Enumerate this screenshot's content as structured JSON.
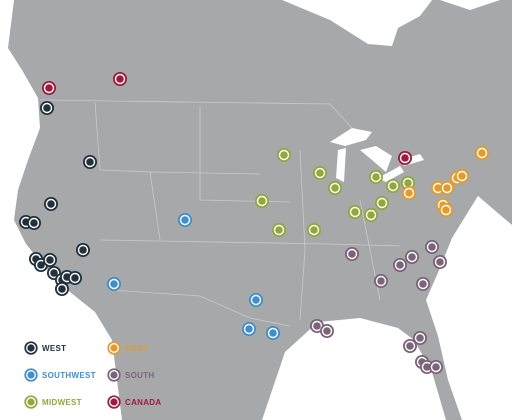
{
  "legend": {
    "items": [
      {
        "label": "WEST",
        "color": "#22313c"
      },
      {
        "label": "SOUTHWEST",
        "color": "#3f8fc8"
      },
      {
        "label": "MIDWEST",
        "color": "#8fa93c"
      },
      {
        "label": "EAST",
        "color": "#e39b2c"
      },
      {
        "label": "SOUTH",
        "color": "#7b6479"
      },
      {
        "label": "CANADA",
        "color": "#9c1b3e"
      }
    ]
  }
}
